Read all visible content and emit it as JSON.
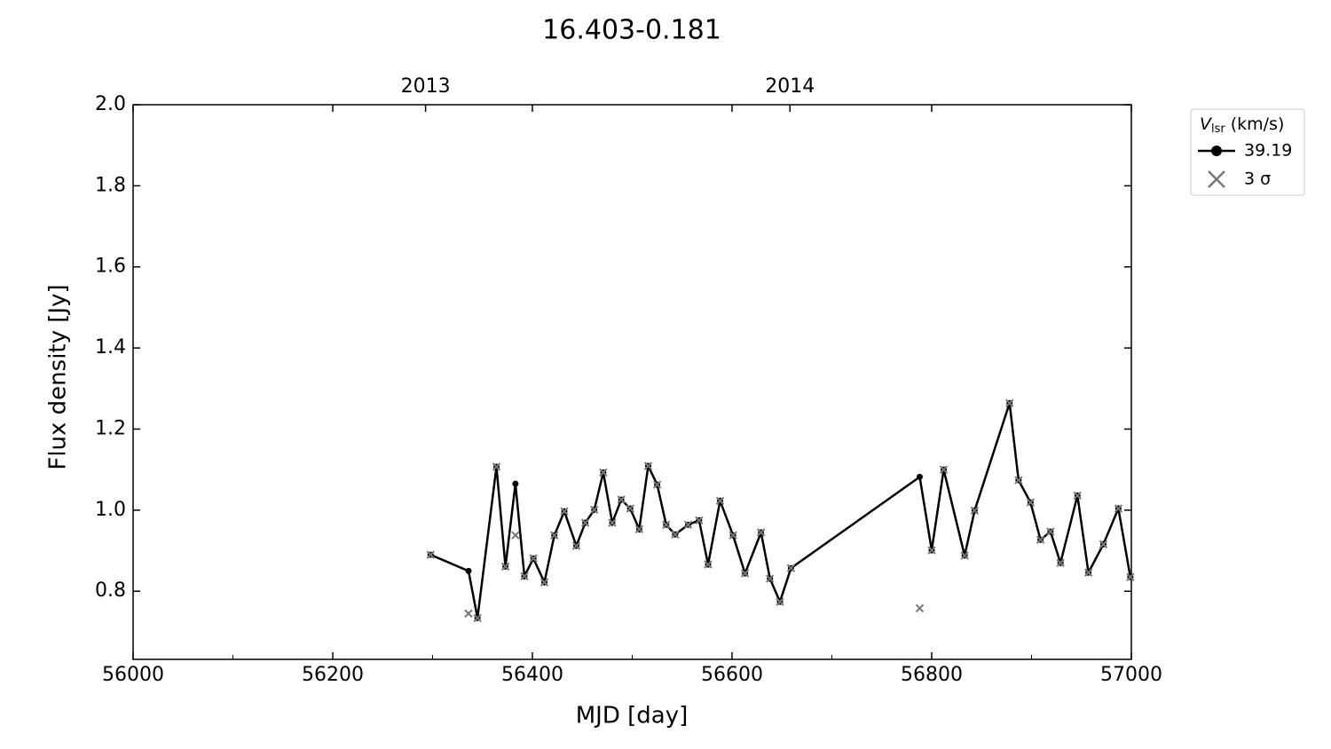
{
  "chart_data": {
    "type": "line",
    "title": "16.403-0.181",
    "x_label": "MJD [day]",
    "y_label": "Flux density [Jy]",
    "legend_title": {
      "symbol": "V",
      "subscript": "lsr",
      "unit": "(km/s)"
    },
    "legend_position": "outside right",
    "xlim": [
      56000,
      57000
    ],
    "xticks": [
      56000,
      56200,
      56400,
      56600,
      56800,
      57000
    ],
    "xticks_minor": [
      56100,
      56300,
      56500,
      56700,
      56900
    ],
    "x2ticks": [
      {
        "value": 56293,
        "label": "2013"
      },
      {
        "value": 56658,
        "label": "2014"
      }
    ],
    "ylim": [
      0.632,
      2.0
    ],
    "yticks": [
      0.8,
      {
        "value": 1,
        "label": "1.0"
      },
      1.2,
      1.4,
      1.6,
      1.8,
      {
        "value": 2,
        "label": "2.0"
      }
    ],
    "x": [
      56298,
      56336,
      56345,
      56364,
      56373,
      56383,
      56392,
      56401,
      56412,
      56422,
      56432,
      56444,
      56453,
      56462,
      56471,
      56480,
      56489,
      56498,
      56507,
      56516,
      56525,
      56534,
      56543,
      56556,
      56567,
      56576,
      56588,
      56601,
      56613,
      56629,
      56638,
      56648,
      56659,
      56788,
      56800,
      56812,
      56833,
      56843,
      56878,
      56887,
      56899,
      56909,
      56919,
      56929,
      56946,
      56957,
      56972,
      56987,
      56999
    ],
    "series": [
      {
        "name": "39.19",
        "color": "#000000",
        "marker": "circle",
        "line": true,
        "values": [
          0.89,
          0.85,
          0.734,
          1.107,
          0.861,
          1.065,
          0.837,
          0.881,
          0.822,
          0.938,
          0.997,
          0.912,
          0.969,
          1.001,
          1.093,
          0.969,
          1.026,
          1.004,
          0.953,
          1.109,
          1.063,
          0.964,
          0.94,
          0.964,
          0.975,
          0.866,
          1.023,
          0.938,
          0.844,
          0.945,
          0.831,
          0.774,
          0.857,
          1.082,
          0.901,
          1.1,
          0.888,
          0.999,
          1.264,
          1.074,
          1.019,
          0.927,
          0.947,
          0.87,
          1.036,
          0.846,
          0.916,
          1.004,
          0.835
        ]
      },
      {
        "name": "3 σ",
        "color": "#777777",
        "marker": "x",
        "line": false,
        "values": [
          0.89,
          0.745,
          0.734,
          1.107,
          0.861,
          0.938,
          0.837,
          0.881,
          0.822,
          0.938,
          0.997,
          0.912,
          0.969,
          1.001,
          1.093,
          0.969,
          1.026,
          1.004,
          0.953,
          1.109,
          1.063,
          0.964,
          0.94,
          0.964,
          0.975,
          0.866,
          1.023,
          0.938,
          0.844,
          0.945,
          0.831,
          0.774,
          0.857,
          0.758,
          0.901,
          1.1,
          0.888,
          0.999,
          1.264,
          1.074,
          1.019,
          0.927,
          0.947,
          0.87,
          1.036,
          0.846,
          0.916,
          1.004,
          0.835
        ]
      }
    ]
  }
}
